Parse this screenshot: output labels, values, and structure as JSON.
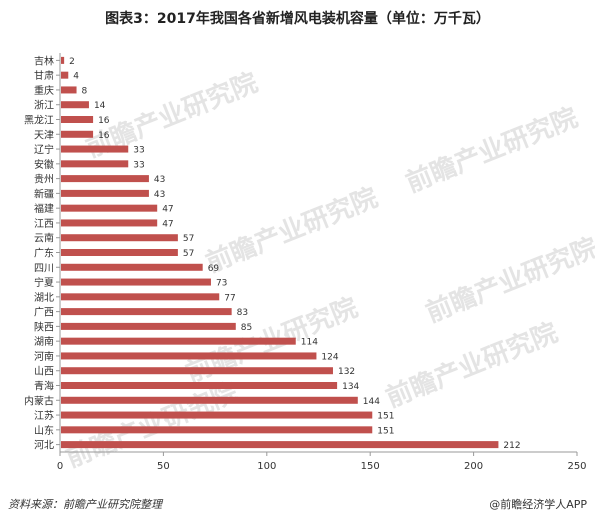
{
  "title": "图表3：2017年我国各省新增风电装机容量（单位：万千瓦）",
  "source": "资料来源：前瞻产业研究院整理",
  "brand": "@前瞻经济学人APP",
  "watermark": "前瞻产业研究院",
  "colors": {
    "bar": "#c0504d",
    "axis": "#999999",
    "text": "#333333"
  },
  "chart_data": {
    "type": "bar",
    "orientation": "horizontal",
    "categories": [
      "吉林",
      "甘肃",
      "重庆",
      "浙江",
      "黑龙江",
      "天津",
      "辽宁",
      "安徽",
      "贵州",
      "新疆",
      "福建",
      "江西",
      "云南",
      "广东",
      "四川",
      "宁夏",
      "湖北",
      "广西",
      "陕西",
      "湖南",
      "河南",
      "山西",
      "青海",
      "内蒙古",
      "江苏",
      "山东",
      "河北"
    ],
    "values": [
      2,
      4,
      8,
      14,
      16,
      16,
      33,
      33,
      43,
      43,
      47,
      47,
      57,
      57,
      69,
      73,
      77,
      83,
      85,
      114,
      124,
      132,
      134,
      144,
      151,
      151,
      212
    ],
    "xlim": [
      0,
      250
    ],
    "xticks": [
      0,
      50,
      100,
      150,
      200,
      250
    ],
    "data_labels": true,
    "grid": false,
    "legend": "none"
  }
}
